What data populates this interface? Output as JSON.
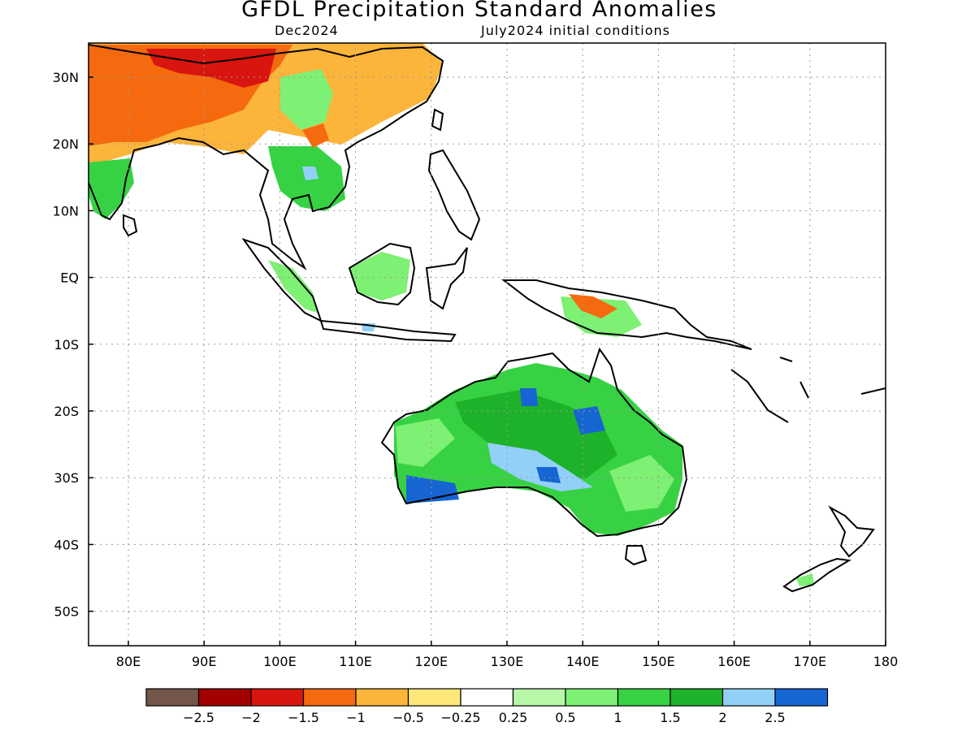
{
  "title": "GFDL Precipitation Standard Anomalies",
  "subtitle_left": "Dec2024",
  "subtitle_right": "July2024 initial conditions",
  "lat_labels": [
    "30N",
    "20N",
    "10N",
    "EQ",
    "10S",
    "20S",
    "30S",
    "40S",
    "50S"
  ],
  "lon_labels": [
    "80E",
    "90E",
    "100E",
    "110E",
    "120E",
    "130E",
    "140E",
    "150E",
    "160E",
    "170E",
    "180"
  ],
  "colorbar": {
    "colors": [
      "#75564b",
      "#a10000",
      "#d8150e",
      "#f66a0f",
      "#fbb53a",
      "#ffe779",
      "#ffffff",
      "#b7f7a8",
      "#7ef073",
      "#37d244",
      "#1eb22b",
      "#92d0f8",
      "#1665d3"
    ],
    "labels": [
      "−2.5",
      "−2",
      "−1.5",
      "−1",
      "−0.5",
      "−0.25",
      "0.25",
      "0.5",
      "1",
      "1.5",
      "2",
      "2.5"
    ]
  }
}
